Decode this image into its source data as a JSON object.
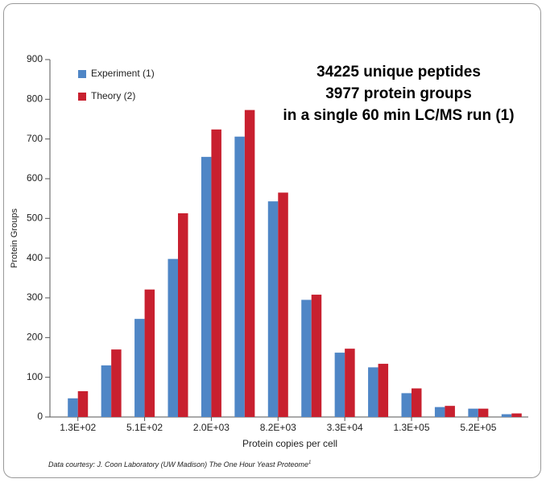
{
  "chart_data": {
    "type": "bar",
    "annotation": [
      "34225 unique peptides",
      "3977 protein groups",
      "in a single 60 min LC/MS run (1)"
    ],
    "xlabel": "Protein copies per cell",
    "ylabel": "Protein Groups",
    "categories": [
      "1.3E+02",
      null,
      "5.1E+02",
      null,
      "2.0E+03",
      null,
      "8.2E+03",
      null,
      "3.3E+04",
      null,
      "1.3E+05",
      null,
      "5.2E+05",
      null
    ],
    "series": [
      {
        "name": "Experiment (1)",
        "color": "#4f86c6",
        "values": [
          47,
          130,
          247,
          398,
          655,
          706,
          543,
          295,
          162,
          125,
          60,
          25,
          21,
          7
        ]
      },
      {
        "name": "Theory (2)",
        "color": "#c8202f",
        "values": [
          65,
          170,
          321,
          513,
          724,
          773,
          565,
          308,
          172,
          134,
          72,
          28,
          21,
          9
        ]
      }
    ],
    "ylim": [
      0,
      900
    ],
    "yticks": [
      0,
      100,
      200,
      300,
      400,
      500,
      600,
      700,
      800,
      900
    ],
    "legend": "top-left",
    "footnote": "Data courtesy: J. Coon Laboratory (UW Madison) The One Hour Yeast Proteome",
    "footnote_ref": "1"
  }
}
